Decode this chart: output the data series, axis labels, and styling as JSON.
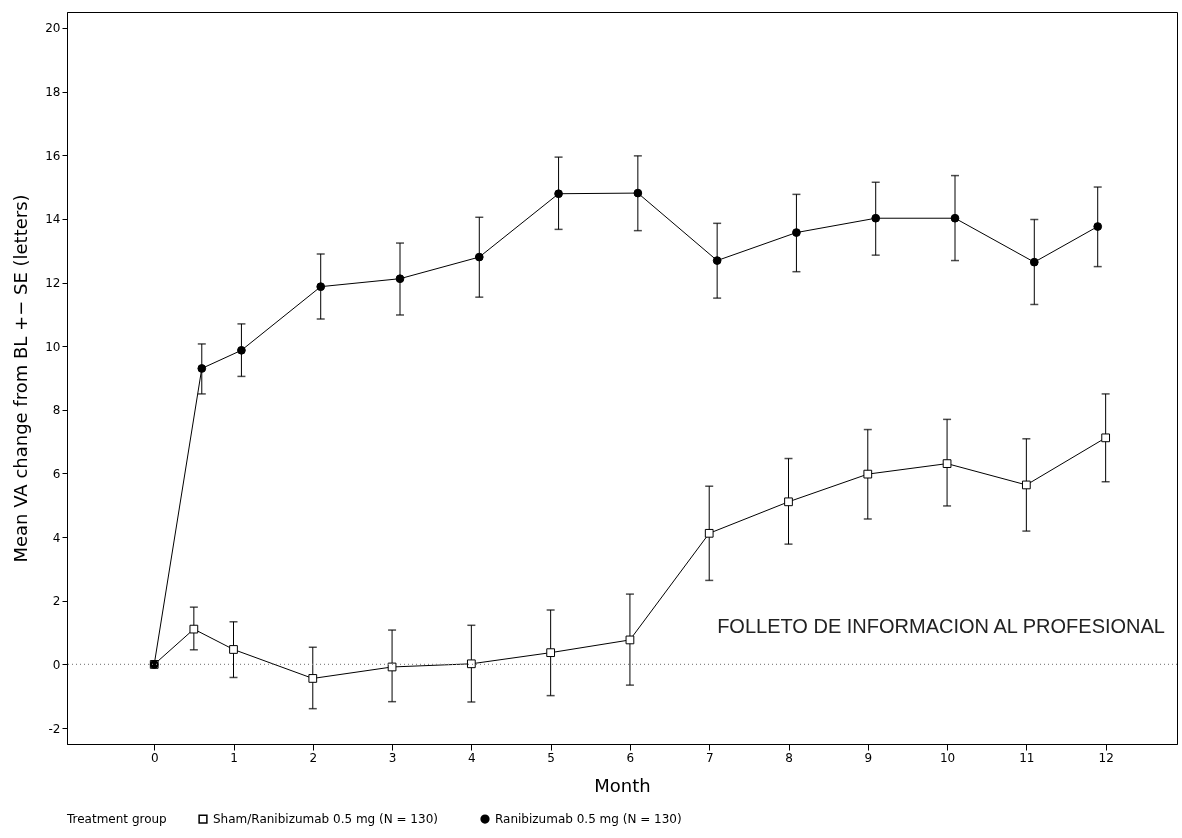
{
  "chart_data": {
    "type": "line",
    "xlabel": "Month",
    "ylabel": "Mean VA change from BL +− SE (letters)",
    "legend_title": "Treatment group",
    "legend": "bottom",
    "grid": false,
    "xlim": [
      -1.1,
      12.9
    ],
    "xticks": [
      0,
      1,
      2,
      3,
      4,
      5,
      6,
      7,
      8,
      9,
      10,
      11,
      12
    ],
    "ylim": [
      -2.5,
      20.5
    ],
    "yticks": [
      -2,
      0,
      2,
      4,
      6,
      8,
      10,
      12,
      14,
      16,
      18,
      20
    ],
    "ref_lines": [
      {
        "axis": "y",
        "value": 0,
        "line_style": "dotted",
        "color": "#888888"
      }
    ],
    "annotations": [
      "FOLLETO DE INFORMACION AL PROFESIONAL"
    ],
    "series": [
      {
        "name": "Sham/Ranibizumab 0.5 mg (N = 130)",
        "color": "#000000",
        "marker": "square",
        "x": [
          0,
          0.5,
          1,
          2,
          3,
          4,
          5,
          6,
          7,
          8,
          9,
          10,
          11,
          12
        ],
        "values": [
          0,
          1.11,
          0.47,
          -0.44,
          -0.08,
          0.02,
          0.37,
          0.77,
          4.12,
          5.11,
          5.98,
          6.31,
          5.64,
          7.12
        ],
        "errors": [
          null,
          [
            0.46,
            1.8
          ],
          [
            -0.41,
            1.34
          ],
          [
            -1.39,
            0.54
          ],
          [
            -1.17,
            1.08
          ],
          [
            -1.18,
            1.23
          ],
          [
            -0.98,
            1.71
          ],
          [
            -0.65,
            2.21
          ],
          [
            2.64,
            5.6
          ],
          [
            3.78,
            6.47
          ],
          [
            4.57,
            7.38
          ],
          [
            4.98,
            7.7
          ],
          [
            4.19,
            7.09
          ],
          [
            5.74,
            8.5
          ]
        ]
      },
      {
        "name": "Ranibizumab 0.5 mg (N = 130)",
        "color": "#000000",
        "marker": "circle",
        "x": [
          0,
          0.6,
          1.1,
          2.1,
          3.1,
          4.1,
          5.1,
          6.1,
          7.1,
          8.1,
          9.1,
          10.1,
          11.1,
          11.9
        ],
        "values": [
          0,
          9.3,
          9.87,
          11.87,
          12.12,
          12.8,
          14.79,
          14.81,
          12.69,
          13.57,
          14.02,
          14.02,
          12.64,
          13.76
        ],
        "errors": [
          null,
          [
            8.5,
            10.07
          ],
          [
            9.05,
            10.7
          ],
          [
            10.85,
            12.9
          ],
          [
            10.98,
            13.24
          ],
          [
            11.54,
            14.05
          ],
          [
            13.67,
            15.94
          ],
          [
            13.63,
            15.98
          ],
          [
            11.51,
            13.86
          ],
          [
            12.34,
            14.77
          ],
          [
            12.86,
            15.15
          ],
          [
            12.69,
            15.36
          ],
          [
            11.31,
            13.98
          ],
          [
            12.5,
            15.0
          ]
        ]
      }
    ]
  }
}
